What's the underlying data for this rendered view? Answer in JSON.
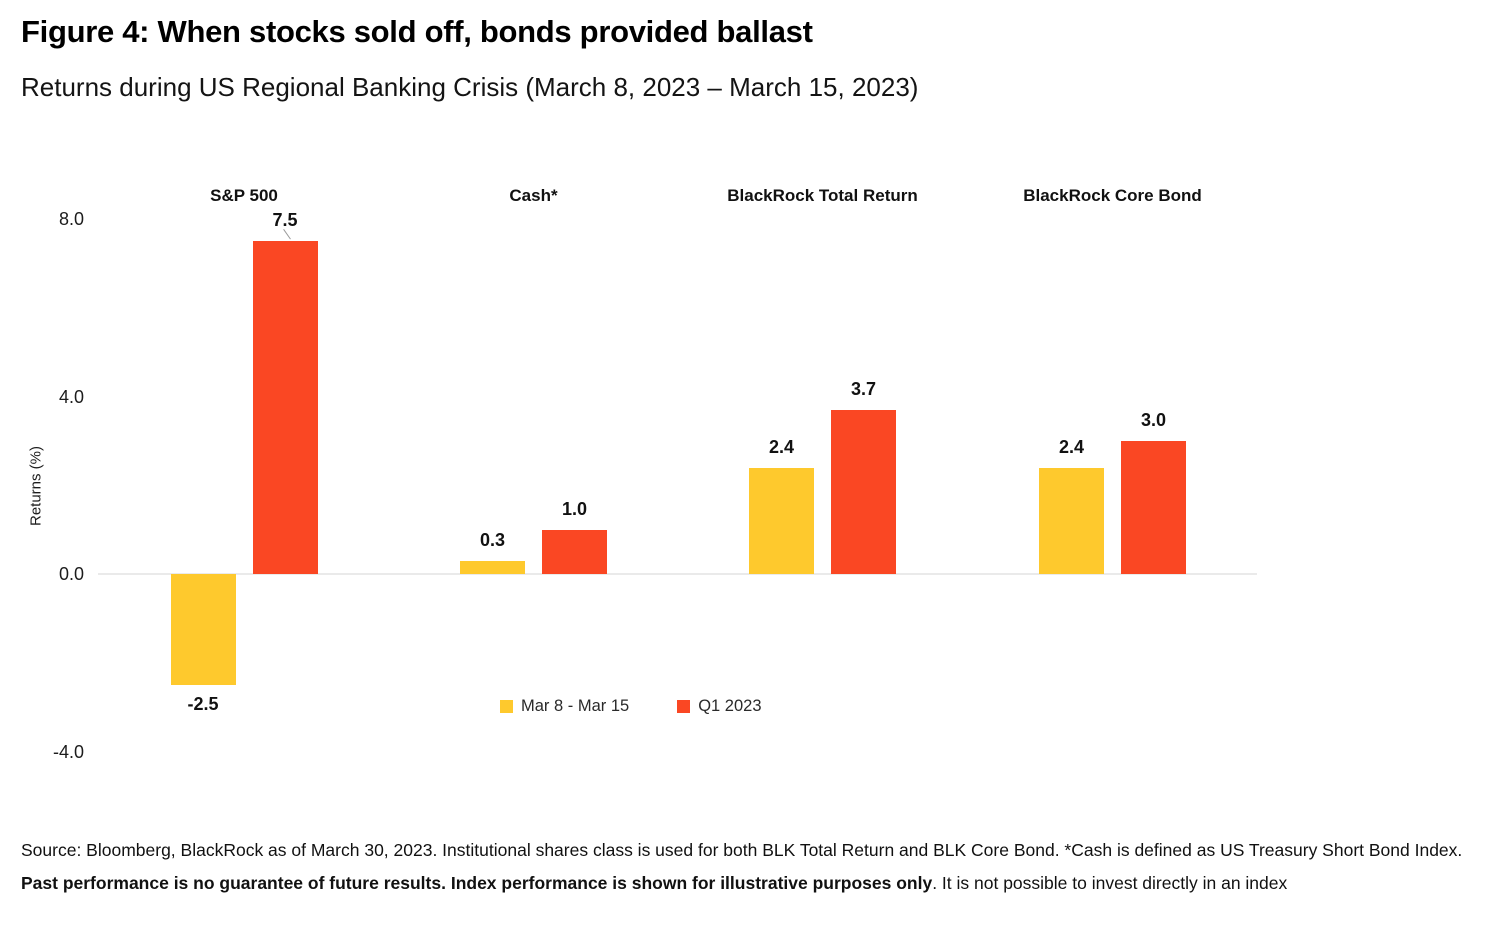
{
  "header": {
    "title": "Figure 4: When stocks sold off, bonds provided ballast",
    "subtitle": "Returns during US Regional Banking Crisis (March 8, 2023 – March 15, 2023)"
  },
  "chart_data": {
    "type": "bar",
    "title": "Figure 4: When stocks sold off, bonds provided ballast",
    "subtitle": "Returns during US Regional Banking Crisis (March 8, 2023 – March 15, 2023)",
    "categories": [
      "S&P 500",
      "Cash*",
      "BlackRock Total Return",
      "BlackRock Core Bond"
    ],
    "series": [
      {
        "name": "Mar 8 - Mar 15",
        "color": "#FEC92D",
        "values": [
          -2.5,
          0.3,
          2.4,
          2.4
        ],
        "labels": [
          "-2.5",
          "0.3",
          "2.4",
          "2.4"
        ]
      },
      {
        "name": "Q1 2023",
        "color": "#FA4723",
        "values": [
          7.5,
          1.0,
          3.7,
          3.0
        ],
        "labels": [
          "7.5",
          "1.0",
          "3.7",
          "3.0"
        ]
      }
    ],
    "xlabel": "",
    "ylabel": "Returns (%)",
    "ylim": [
      -4.0,
      8.0
    ],
    "yticks": [
      8.0,
      4.0,
      0.0,
      -4.0
    ],
    "ytick_labels": [
      "8.0",
      "4.0",
      "0.0",
      "-4.0"
    ],
    "grid": false,
    "baseline_at_zero": true,
    "legend_position": "bottom-center",
    "colors": {
      "series_1": "#FEC92D",
      "series_2": "#FA4723",
      "zero_line": "#EAEAEA",
      "text": "#111111"
    }
  },
  "source": {
    "text_regular_1": "Source: Bloomberg, BlackRock as of March 30, 2023. Institutional shares class is used for both BLK Total Return and BLK Core Bond. *Cash is defined as US Treasury Short Bond Index. ",
    "text_bold": "Past performance is no guarantee of future results. Index performance is shown for illustrative purposes only",
    "text_regular_2": ". It is not possible to invest directly in an index"
  }
}
